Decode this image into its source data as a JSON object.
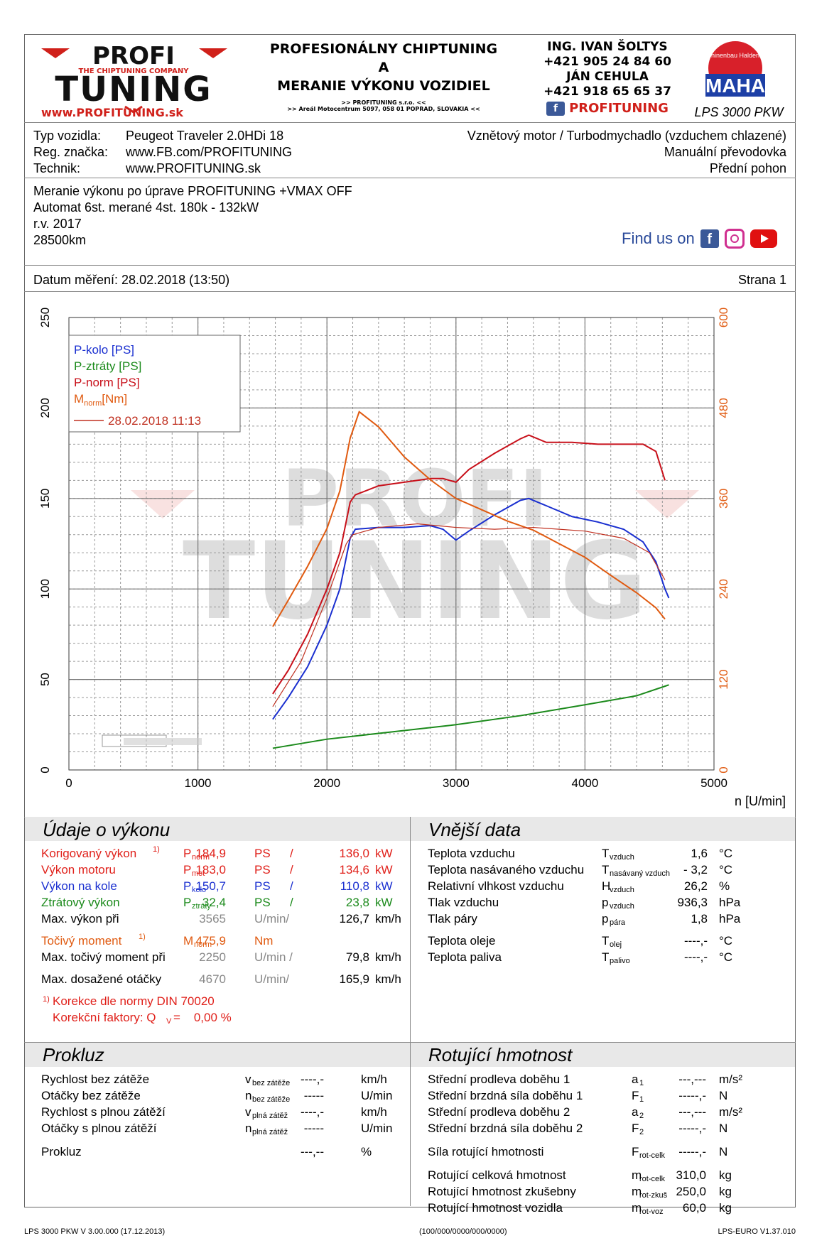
{
  "header": {
    "logo_top": "PROFI",
    "logo_sub": "THE CHIPTUNING COMPANY",
    "logo_bottom": "TUNING",
    "logo_url": "www.PROFITUNING.sk",
    "title_line1": "PROFESIONÁLNY CHIPTUNING",
    "title_line2": "A",
    "title_line3": "MERANIE VÝKONU VOZIDIEL",
    "company_line1": ">> PROFITUNING s.r.o. <<",
    "company_line2": ">> Areál Motocentrum 5097, 058 01 POPRAD, SLOVAKIA <<",
    "contact1_name": "ING. IVAN ŠOLTYS",
    "contact1_phone": "+421 905 24 84 60",
    "contact2_name": "JÁN CEHULA",
    "contact2_phone": "+421 918 65 65 37",
    "fb_brand": "PROFITUNING",
    "maha_ring": "Maschinenbau Haldenwang",
    "maha_text": "MAHA",
    "dyno_model": "LPS 3000 PKW"
  },
  "vehicle": {
    "type_label": "Typ vozidla:",
    "type_value": "Peugeot Traveler 2.0HDi 18",
    "reg_label": "Reg. značka:",
    "reg_value": "www.FB.com/PROFITUNING",
    "tech_label": "Technik:",
    "tech_value": "www.PROFITUNING.sk",
    "engine": "Vznětový motor / Turbodmychadlo (vzduchem chlazené)",
    "gearbox": "Manuální převodovka",
    "drive": "Přední pohon"
  },
  "notes": {
    "line1": "Meranie výkonu po úprave PROFITUNING +VMAX OFF",
    "line2": "Automat 6st. merané 4st. 180k - 132kW",
    "line3": "r.v. 2017",
    "line4": "28500km",
    "find_us": "Find us on"
  },
  "date_row": {
    "date": "Datum měření: 28.02.2018 (13:50)",
    "page": "Strana 1"
  },
  "chart_data": {
    "type": "line",
    "xlabel": "n [U/min]",
    "xlim": [
      0,
      5000
    ],
    "x_ticks": [
      "0",
      "1000",
      "2000",
      "3000",
      "4000",
      "5000"
    ],
    "ylim_left": [
      0,
      250
    ],
    "y_ticks_left": [
      "0",
      "50",
      "100",
      "150",
      "200",
      "250"
    ],
    "ylim_right": [
      0,
      600
    ],
    "y_ticks_right": [
      "0",
      "120",
      "240",
      "360",
      "480",
      "600"
    ],
    "grid": true,
    "legend_placement": "top-left",
    "legend": [
      "P-kolo [PS]",
      "P-ztráty [PS]",
      "P-norm [PS]",
      "M",
      "[Nm]",
      "28.02.2018 11:13"
    ],
    "colors": {
      "p_kolo": "#1a2fd0",
      "p_ztraty": "#1b8a1b",
      "p_norm": "#c8101a",
      "m_norm": "#e05a10",
      "ref": "#c03020"
    },
    "series": [
      {
        "name": "P-norm [PS]",
        "axis": "left",
        "color": "#c8101a",
        "x": [
          1580,
          1700,
          1850,
          2000,
          2100,
          2180,
          2220,
          2400,
          2600,
          2800,
          2900,
          3000,
          3100,
          3300,
          3500,
          3565,
          3700,
          3900,
          4100,
          4300,
          4450,
          4550,
          4620
        ],
        "y": [
          42,
          55,
          75,
          100,
          120,
          148,
          152,
          157,
          159,
          161,
          161,
          159,
          166,
          175,
          183,
          185,
          181,
          181,
          180,
          180,
          180,
          176,
          160
        ]
      },
      {
        "name": "P-kolo [PS]",
        "axis": "left",
        "color": "#1a2fd0",
        "x": [
          1580,
          1700,
          1850,
          2000,
          2100,
          2180,
          2220,
          2400,
          2600,
          2800,
          2900,
          3000,
          3100,
          3300,
          3500,
          3565,
          3700,
          3900,
          4100,
          4300,
          4450,
          4550,
          4620,
          4650
        ],
        "y": [
          28,
          40,
          57,
          80,
          100,
          128,
          133,
          134,
          134,
          135,
          133,
          127,
          132,
          141,
          149,
          150,
          146,
          140,
          137,
          133,
          126,
          115,
          100,
          95
        ]
      },
      {
        "name": "P-ztráty [PS]",
        "axis": "left",
        "color": "#1b8a1b",
        "x": [
          1580,
          2000,
          2500,
          3000,
          3500,
          4000,
          4400,
          4650
        ],
        "y": [
          12,
          17,
          21,
          25,
          30,
          36,
          41,
          47
        ]
      },
      {
        "name": "M [Nm]",
        "axis": "right",
        "color": "#e05a10",
        "x": [
          1580,
          1700,
          1850,
          2000,
          2100,
          2180,
          2250,
          2400,
          2600,
          2800,
          3000,
          3200,
          3400,
          3600,
          3800,
          4000,
          4200,
          4400,
          4550,
          4620
        ],
        "y": [
          190,
          225,
          270,
          320,
          370,
          440,
          475,
          455,
          415,
          385,
          360,
          345,
          330,
          318,
          300,
          282,
          258,
          235,
          215,
          200
        ]
      },
      {
        "name": "28.02.2018 11:13",
        "axis": "mixed",
        "color": "#c03020",
        "x": [
          1580,
          1800,
          2000,
          2150,
          2200,
          2400,
          2700,
          3000,
          3300,
          3600,
          4000,
          4300,
          4500,
          4620
        ],
        "y": [
          35,
          60,
          95,
          125,
          130,
          134,
          136,
          134,
          133,
          134,
          132,
          128,
          120,
          105
        ]
      }
    ]
  },
  "performance": {
    "title": "Údaje o výkonu",
    "rows": [
      {
        "label": "Korigovaný výkon",
        "sup": "1)",
        "sym": "P",
        "sub": "norm",
        "v1": "184,9",
        "u1": "PS",
        "sep": "/",
        "v2": "136,0",
        "u2": "kW"
      },
      {
        "label": "Výkon motoru",
        "sup": "",
        "sym": "P",
        "sub": "mot",
        "v1": "183,0",
        "u1": "PS",
        "sep": "/",
        "v2": "134,6",
        "u2": "kW"
      },
      {
        "label": "Výkon na kole",
        "sup": "",
        "sym": "P",
        "sub": "kolo",
        "v1": "150,7",
        "u1": "PS",
        "sep": "/",
        "v2": "110,8",
        "u2": "kW"
      },
      {
        "label": "Ztrátový výkon",
        "sup": "",
        "sym": "P",
        "sub": "ztráty",
        "v1": "32,4",
        "u1": "PS",
        "sep": "/",
        "v2": "23,8",
        "u2": "kW"
      }
    ],
    "maxpower_label": "Max. výkon při",
    "maxpower_rpm": "3565",
    "maxpower_unit": "U/min/",
    "maxpower_speed": "126,7",
    "maxpower_speed_unit": "km/h",
    "torque_label": "Točivý moment",
    "torque_sup": "1)",
    "torque_sym": "M",
    "torque_sub": "norm",
    "torque_value": "475,9",
    "torque_unit": "Nm",
    "maxtorque_label": "Max. točivý moment při",
    "maxtorque_rpm": "2250",
    "maxtorque_unit": "U/min /",
    "maxtorque_speed": "79,8",
    "maxtorque_speed_unit": "km/h",
    "maxrpm_label": "Max. dosažené otáčky",
    "maxrpm_rpm": "4670",
    "maxrpm_unit": "U/min/",
    "maxrpm_speed": "165,9",
    "maxrpm_speed_unit": "km/h",
    "footnote_sup": "1)",
    "footnote": "Korekce dle normy DIN 70020",
    "factor_label": "Korekční faktory: Q",
    "factor_sub": "V",
    "factor_value": "=    0,00 %"
  },
  "external": {
    "title": "Vnější data",
    "rows": [
      {
        "label": "Teplota vzduchu",
        "sym": "T",
        "sub": "vzduch",
        "value": "1,6",
        "unit": "°C"
      },
      {
        "label": "Teplota nasávaného vzduchu",
        "sym": "T",
        "sub": "nasávaný vzduch",
        "value": "- 3,2",
        "unit": "°C"
      },
      {
        "label": "Relativní vlhkost vzduchu",
        "sym": "H",
        "sub": "vzduch",
        "value": "26,2",
        "unit": "%"
      },
      {
        "label": "Tlak vzduchu",
        "sym": "p",
        "sub": "vzduch",
        "value": "936,3",
        "unit": "hPa"
      },
      {
        "label": "Tlak páry",
        "sym": "p",
        "sub": "pára",
        "value": "1,8",
        "unit": "hPa"
      },
      {
        "label": "Teplota oleje",
        "sym": "T",
        "sub": "olej",
        "value": "----,-",
        "unit": "°C"
      },
      {
        "label": "Teplota paliva",
        "sym": "T",
        "sub": "palivo",
        "value": "----,-",
        "unit": "°C"
      }
    ]
  },
  "slip": {
    "title": "Prokluz",
    "rows": [
      {
        "label": "Rychlost bez zátěže",
        "sym": "v",
        "sub": "bez zátěže",
        "value": "----,-",
        "unit": "km/h"
      },
      {
        "label": "Otáčky bez zátěže",
        "sym": "n",
        "sub": "bez zátěže",
        "value": "-----",
        "unit": "U/min"
      },
      {
        "label": "Rychlost s plnou zátěží",
        "sym": "v",
        "sub": "plná zátěž",
        "value": "----,-",
        "unit": "km/h"
      },
      {
        "label": "Otáčky s plnou zátěží",
        "sym": "n",
        "sub": "plná zátěž",
        "value": "-----",
        "unit": "U/min"
      },
      {
        "label": "Prokluz",
        "sym": "",
        "sub": "",
        "value": "---,--",
        "unit": "%"
      }
    ]
  },
  "rotating": {
    "title": "Rotující hmotnost",
    "rows": [
      {
        "label": "Střední prodleva doběhu 1",
        "sym": "a",
        "sub": "1",
        "value": "---,---",
        "unit": "m/s²"
      },
      {
        "label": "Střední brzdná síla doběhu 1",
        "sym": "F",
        "sub": "1",
        "value": "-----,-",
        "unit": "N"
      },
      {
        "label": "Střední prodleva doběhu 2",
        "sym": "a",
        "sub": "2",
        "value": "---,---",
        "unit": "m/s²"
      },
      {
        "label": "Střední brzdná síla doběhu 2",
        "sym": "F",
        "sub": "2",
        "value": "-----,-",
        "unit": "N"
      },
      {
        "label": "Síla rotující hmotnosti",
        "sym": "F",
        "sub": "rot-celk",
        "value": "-----,-",
        "unit": "N"
      },
      {
        "label": "Rotující celková hmotnost",
        "sym": "m",
        "sub": "rot-celk",
        "value": "310,0",
        "unit": "kg"
      },
      {
        "label": "Rotující hmotnost zkušebny",
        "sym": "m",
        "sub": "rot-zkuš",
        "value": "250,0",
        "unit": "kg"
      },
      {
        "label": "Rotující hmotnost vozidla",
        "sym": "m",
        "sub": "rot-voz",
        "value": "60,0",
        "unit": "kg"
      }
    ]
  },
  "footer": {
    "left": "LPS 3000 PKW V 3.00.000 (17.12.2013)",
    "center": "(100/000/0000/000/0000)",
    "right": "LPS-EURO V1.37.010"
  }
}
